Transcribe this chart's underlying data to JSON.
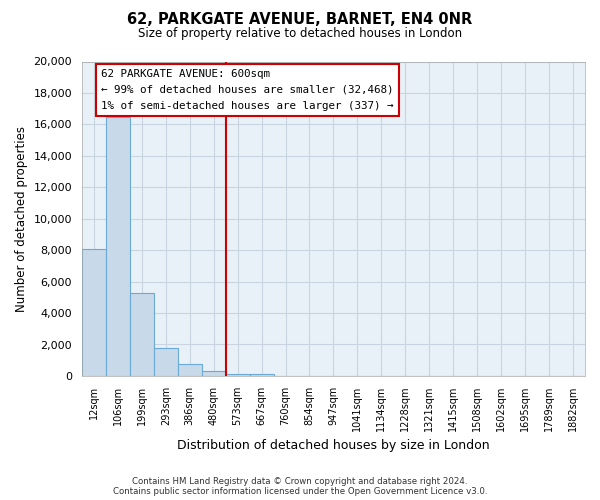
{
  "title": "62, PARKGATE AVENUE, BARNET, EN4 0NR",
  "subtitle": "Size of property relative to detached houses in London",
  "xlabel": "Distribution of detached houses by size in London",
  "ylabel": "Number of detached properties",
  "bar_color": "#c8d9ea",
  "bar_edge_color": "#6aaad4",
  "vline_color": "#cc0000",
  "vline_x_index": 6,
  "annotation_title": "62 PARKGATE AVENUE: 600sqm",
  "annotation_line1": "← 99% of detached houses are smaller (32,468)",
  "annotation_line2": "1% of semi-detached houses are larger (337) →",
  "annotation_box_edge": "#cc0000",
  "categories": [
    "12sqm",
    "106sqm",
    "199sqm",
    "293sqm",
    "386sqm",
    "480sqm",
    "573sqm",
    "667sqm",
    "760sqm",
    "854sqm",
    "947sqm",
    "1041sqm",
    "1134sqm",
    "1228sqm",
    "1321sqm",
    "1415sqm",
    "1508sqm",
    "1602sqm",
    "1695sqm",
    "1789sqm",
    "1882sqm"
  ],
  "values": [
    8100,
    16500,
    5300,
    1800,
    750,
    300,
    150,
    150,
    0,
    0,
    0,
    0,
    0,
    0,
    0,
    0,
    0,
    0,
    0,
    0,
    0
  ],
  "ylim": [
    0,
    20000
  ],
  "yticks": [
    0,
    2000,
    4000,
    6000,
    8000,
    10000,
    12000,
    14000,
    16000,
    18000,
    20000
  ],
  "footer_line1": "Contains HM Land Registry data © Crown copyright and database right 2024.",
  "footer_line2": "Contains public sector information licensed under the Open Government Licence v3.0.",
  "bg_color": "#ffffff",
  "plot_bg_color": "#e8f0f8",
  "grid_color": "#c8d4e0"
}
